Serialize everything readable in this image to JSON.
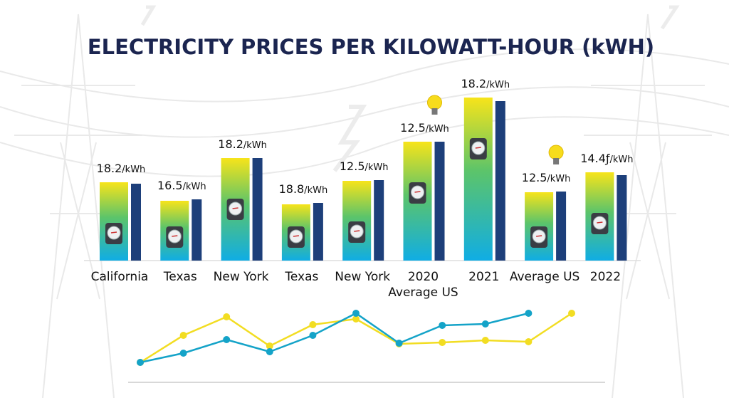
{
  "chart_data": [
    {
      "type": "bar",
      "title": "ELECTRICITY PRICES PER KILOWATT-HOUR (kWH)",
      "categories": [
        "California",
        "Texas",
        "New York",
        "Texas",
        "New York",
        "2020\nAverage US",
        "2021",
        "Average US",
        "2022"
      ],
      "data_labels": [
        "18.2",
        "16.5",
        "18.2",
        "18.8",
        "12.5",
        "12.5",
        "18.2",
        "12.5",
        "14.4ƒ"
      ],
      "data_label_unit": "/kWh",
      "series": [
        {
          "values": [
            110,
            84,
            144,
            79,
            112,
            167,
            229,
            96,
            124
          ],
          "color": "gradient yellow #f5e21a to blue #12b0e0"
        },
        {
          "values": [
            108,
            86,
            144,
            81,
            113,
            167,
            224,
            97,
            120
          ],
          "color": "#1d3f7a"
        }
      ],
      "ylim": [
        0,
        240
      ],
      "grid": false,
      "icons": [
        "electric-meter-icon",
        "lightbulb-icon"
      ],
      "bulb_above": [
        5,
        7
      ]
    },
    {
      "type": "line",
      "x": [
        0,
        1,
        2,
        3,
        4,
        5,
        6,
        7,
        8,
        9,
        10
      ],
      "series": [
        {
          "color": "#f2dd22",
          "values": [
            31,
            69,
            95,
            54,
            84,
            92,
            57,
            59,
            62,
            60,
            100
          ]
        },
        {
          "color": "#14a3c8",
          "values": [
            31,
            44,
            63,
            46,
            69,
            100,
            58,
            83,
            85,
            100,
            null
          ]
        }
      ],
      "ylim": [
        0,
        110
      ],
      "grid": false
    }
  ]
}
